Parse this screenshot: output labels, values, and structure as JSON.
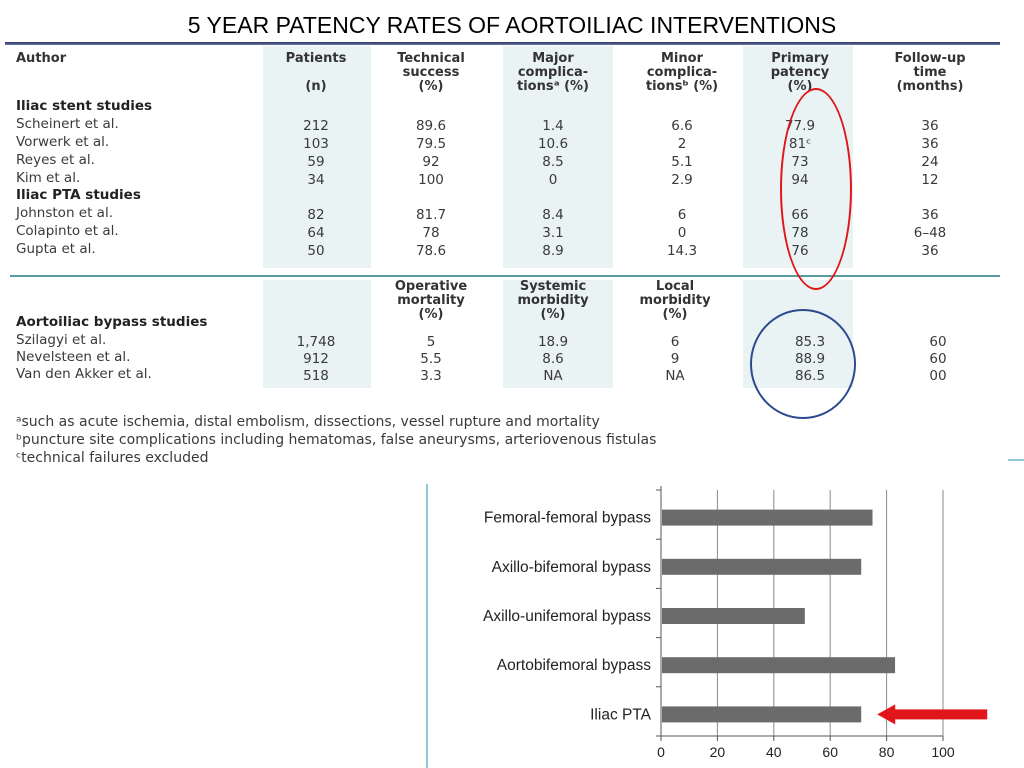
{
  "slide": {
    "title": "5 YEAR PATENCY RATES OF AORTOILIAC INTERVENTIONS"
  },
  "table": {
    "headers": {
      "author": "Author",
      "patients": [
        "Patients",
        "",
        "(n)"
      ],
      "technical": [
        "Technical",
        "success",
        "(%)"
      ],
      "major": [
        "Major",
        "complica-",
        "tionsᵃ (%)"
      ],
      "minor": [
        "Minor",
        "complica-",
        "tionsᵇ (%)"
      ],
      "primary": [
        "Primary",
        "patency",
        "(%)"
      ],
      "followup": [
        "Follow-up",
        "time",
        "(months)"
      ]
    },
    "stent_section": "Iliac stent studies",
    "stent_rows": [
      {
        "author": "Scheinert et al.",
        "patients": "212",
        "technical": "89.6",
        "major": "1.4",
        "minor": "6.6",
        "patency": "77.9",
        "followup": "36"
      },
      {
        "author": "Vorwerk et al.",
        "patients": "103",
        "technical": "79.5",
        "major": "10.6",
        "minor": "2",
        "patency": "81ᶜ",
        "followup": "36"
      },
      {
        "author": "Reyes et al.",
        "patients": "59",
        "technical": "92",
        "major": "8.5",
        "minor": "5.1",
        "patency": "73",
        "followup": "24"
      },
      {
        "author": "Kim et al.",
        "patients": "34",
        "technical": "100",
        "major": "0",
        "minor": "2.9",
        "patency": "94",
        "followup": "12"
      }
    ],
    "pta_section": "Iliac PTA studies",
    "pta_rows": [
      {
        "author": "Johnston et al.",
        "patients": "82",
        "technical": "81.7",
        "major": "8.4",
        "minor": "6",
        "patency": "66",
        "followup": "36"
      },
      {
        "author": "Colapinto et al.",
        "patients": "64",
        "technical": "78",
        "major": "3.1",
        "minor": "0",
        "patency": "78",
        "followup": "6–48"
      },
      {
        "author": "Gupta et al.",
        "patients": "50",
        "technical": "78.6",
        "major": "8.9",
        "minor": "14.3",
        "patency": "76",
        "followup": "36"
      }
    ],
    "bypass_headers": {
      "operative": [
        "Operative",
        "mortality",
        "(%)"
      ],
      "systemic": [
        "Systemic",
        "morbidity",
        "(%)"
      ],
      "local": [
        "Local",
        "morbidity",
        "(%)"
      ]
    },
    "bypass_section": "Aortoiliac bypass studies",
    "bypass_rows": [
      {
        "author": "Szilagyi et al.",
        "patients": "1,748",
        "operative": "5",
        "systemic": "18.9",
        "local": "6",
        "patency": "85.3",
        "followup": "60"
      },
      {
        "author": "Nevelsteen et al.",
        "patients": "912",
        "operative": "5.5",
        "systemic": "8.6",
        "local": "9",
        "patency": "88.9",
        "followup": "60"
      },
      {
        "author": "Van den Akker et al.",
        "patients": "518",
        "operative": "3.3",
        "systemic": "NA",
        "local": "NA",
        "patency": "86.5",
        "followup": "00"
      }
    ],
    "footnotes": [
      "ᵃsuch as acute ischemia, distal embolism, dissections, vessel rupture and mortality",
      "ᵇpuncture site complications including hematomas, false aneurysms, arteriovenous fistulas",
      "ᶜtechnical failures excluded"
    ]
  },
  "annotations": {
    "red_ring_color": "#e0161a",
    "blue_ring_color": "#2c4a8f",
    "arrow_color": "#e0161a"
  },
  "chart_data": {
    "type": "bar",
    "orientation": "horizontal",
    "categories": [
      "Femoral-femoral bypass",
      "Axillo-bifemoral bypass",
      "Axillo-unifemoral bypass",
      "Aortobifemoral bypass",
      "Iliac PTA"
    ],
    "values": [
      75,
      71,
      51,
      83,
      71
    ],
    "xlim": [
      0,
      100
    ],
    "xticks": [
      "0",
      "20",
      "40",
      "60",
      "80",
      "100"
    ],
    "grid": true,
    "bar_color": "#6b6b6b",
    "highlight": "Iliac PTA"
  }
}
